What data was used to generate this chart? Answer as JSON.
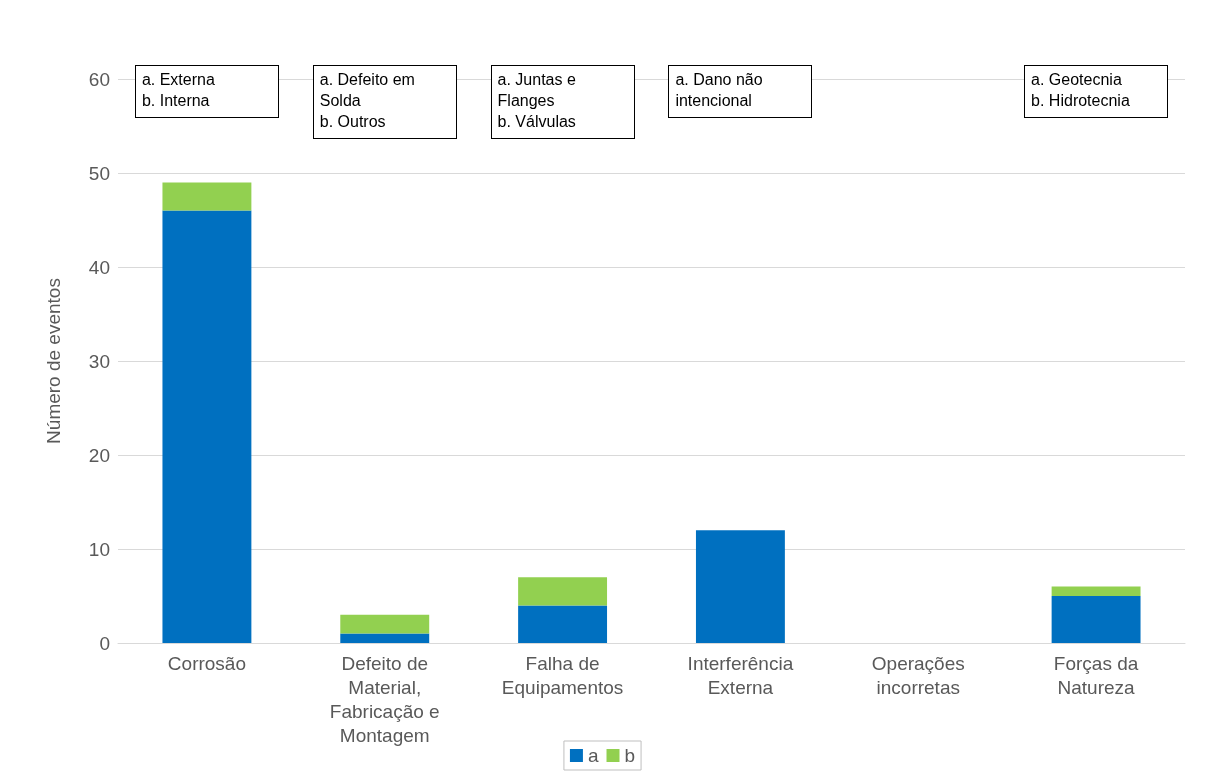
{
  "chart_data": {
    "type": "bar",
    "stacked": true,
    "ylabel": "Número de eventos",
    "categories": [
      "Corrosão",
      "Defeito de\nMaterial,\nFabricação e\nMontagem",
      "Falha de\nEquipamentos",
      "Interferência\nExterna",
      "Operações\nincorretas",
      "Forças da\nNatureza"
    ],
    "series": [
      {
        "name": "a",
        "color": "#0070c0",
        "values": [
          46,
          1,
          4,
          12,
          0,
          5
        ]
      },
      {
        "name": "b",
        "color": "#92d050",
        "values": [
          3,
          2,
          3,
          0,
          0,
          1
        ]
      }
    ],
    "ylim": [
      0,
      60
    ],
    "yticks": [
      0,
      10,
      20,
      30,
      40,
      50,
      60
    ],
    "grid": "y",
    "legend": "bottom",
    "annotations": [
      "a. Externa\nb. Interna",
      "a.  Defeito  em\nSolda\nb. Outros",
      "a. Juntas e\nFlanges\nb. Válvulas",
      "a.  Dano  não\nintencional",
      "a. Geotecnia\nb. Hidrotecnia"
    ]
  }
}
